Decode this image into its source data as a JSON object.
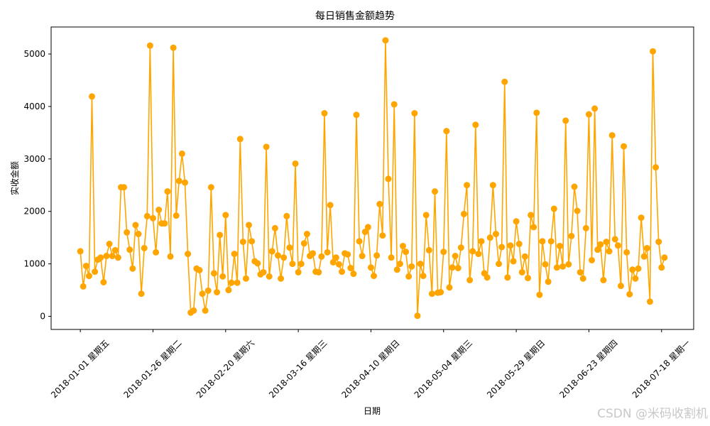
{
  "chart_data": {
    "type": "line",
    "title": "每日销售金额趋势",
    "xlabel": "日期",
    "ylabel": "实收金额",
    "x_tick_labels": [
      "2018-01-01 星期五",
      "2018-01-26 星期二",
      "2018-02-20 星期六",
      "2018-03-16 星期三",
      "2018-04-10 星期日",
      "2018-05-04 星期三",
      "2018-05-29 星期日",
      "2018-06-23 星期四",
      "2018-07-18 星期一"
    ],
    "yticks": [
      0,
      1000,
      2000,
      3000,
      4000,
      5000
    ],
    "ylim": [
      -250,
      5515
    ],
    "grid": false,
    "series": [
      {
        "color": "#FFA500",
        "values": [
          1240,
          570,
          960,
          770,
          4190,
          850,
          1080,
          1120,
          650,
          1150,
          1380,
          1150,
          1260,
          1120,
          2460,
          2460,
          1600,
          1270,
          910,
          1740,
          1570,
          430,
          1300,
          1910,
          5160,
          1870,
          1220,
          2030,
          1770,
          1770,
          2380,
          1140,
          5120,
          1920,
          2580,
          3100,
          2550,
          1190,
          70,
          110,
          910,
          880,
          430,
          110,
          490,
          2460,
          820,
          460,
          1550,
          760,
          1930,
          500,
          640,
          1190,
          640,
          3380,
          1420,
          720,
          1740,
          1430,
          1050,
          1010,
          800,
          840,
          3230,
          760,
          1240,
          1680,
          1160,
          720,
          1120,
          1910,
          1310,
          1000,
          2910,
          840,
          1000,
          1390,
          1570,
          1150,
          1200,
          850,
          840,
          1140,
          3870,
          1220,
          2120,
          1030,
          1120,
          990,
          850,
          1200,
          1180,
          920,
          810,
          3840,
          1430,
          1150,
          1610,
          1700,
          930,
          770,
          1160,
          2140,
          1540,
          5260,
          2620,
          1120,
          4040,
          890,
          1000,
          1340,
          1230,
          760,
          950,
          3870,
          10,
          1000,
          770,
          1930,
          1260,
          430,
          2380,
          450,
          460,
          1230,
          3530,
          550,
          930,
          1150,
          920,
          1310,
          1950,
          2500,
          690,
          1240,
          3650,
          1190,
          1430,
          820,
          740,
          1500,
          2500,
          1570,
          1000,
          1320,
          4470,
          740,
          1350,
          1050,
          1810,
          1380,
          840,
          1140,
          730,
          1930,
          1700,
          3880,
          410,
          1430,
          990,
          660,
          1430,
          2050,
          930,
          1340,
          950,
          3730,
          990,
          1530,
          2470,
          2010,
          840,
          720,
          1680,
          3850,
          1070,
          3960,
          1270,
          1370,
          690,
          1420,
          1240,
          3450,
          1470,
          1350,
          580,
          3240,
          1220,
          420,
          890,
          720,
          910,
          1880,
          1140,
          1300,
          280,
          5050,
          2840,
          1420,
          930,
          1120
        ]
      }
    ]
  },
  "watermark": "CSDN @米码收割机"
}
